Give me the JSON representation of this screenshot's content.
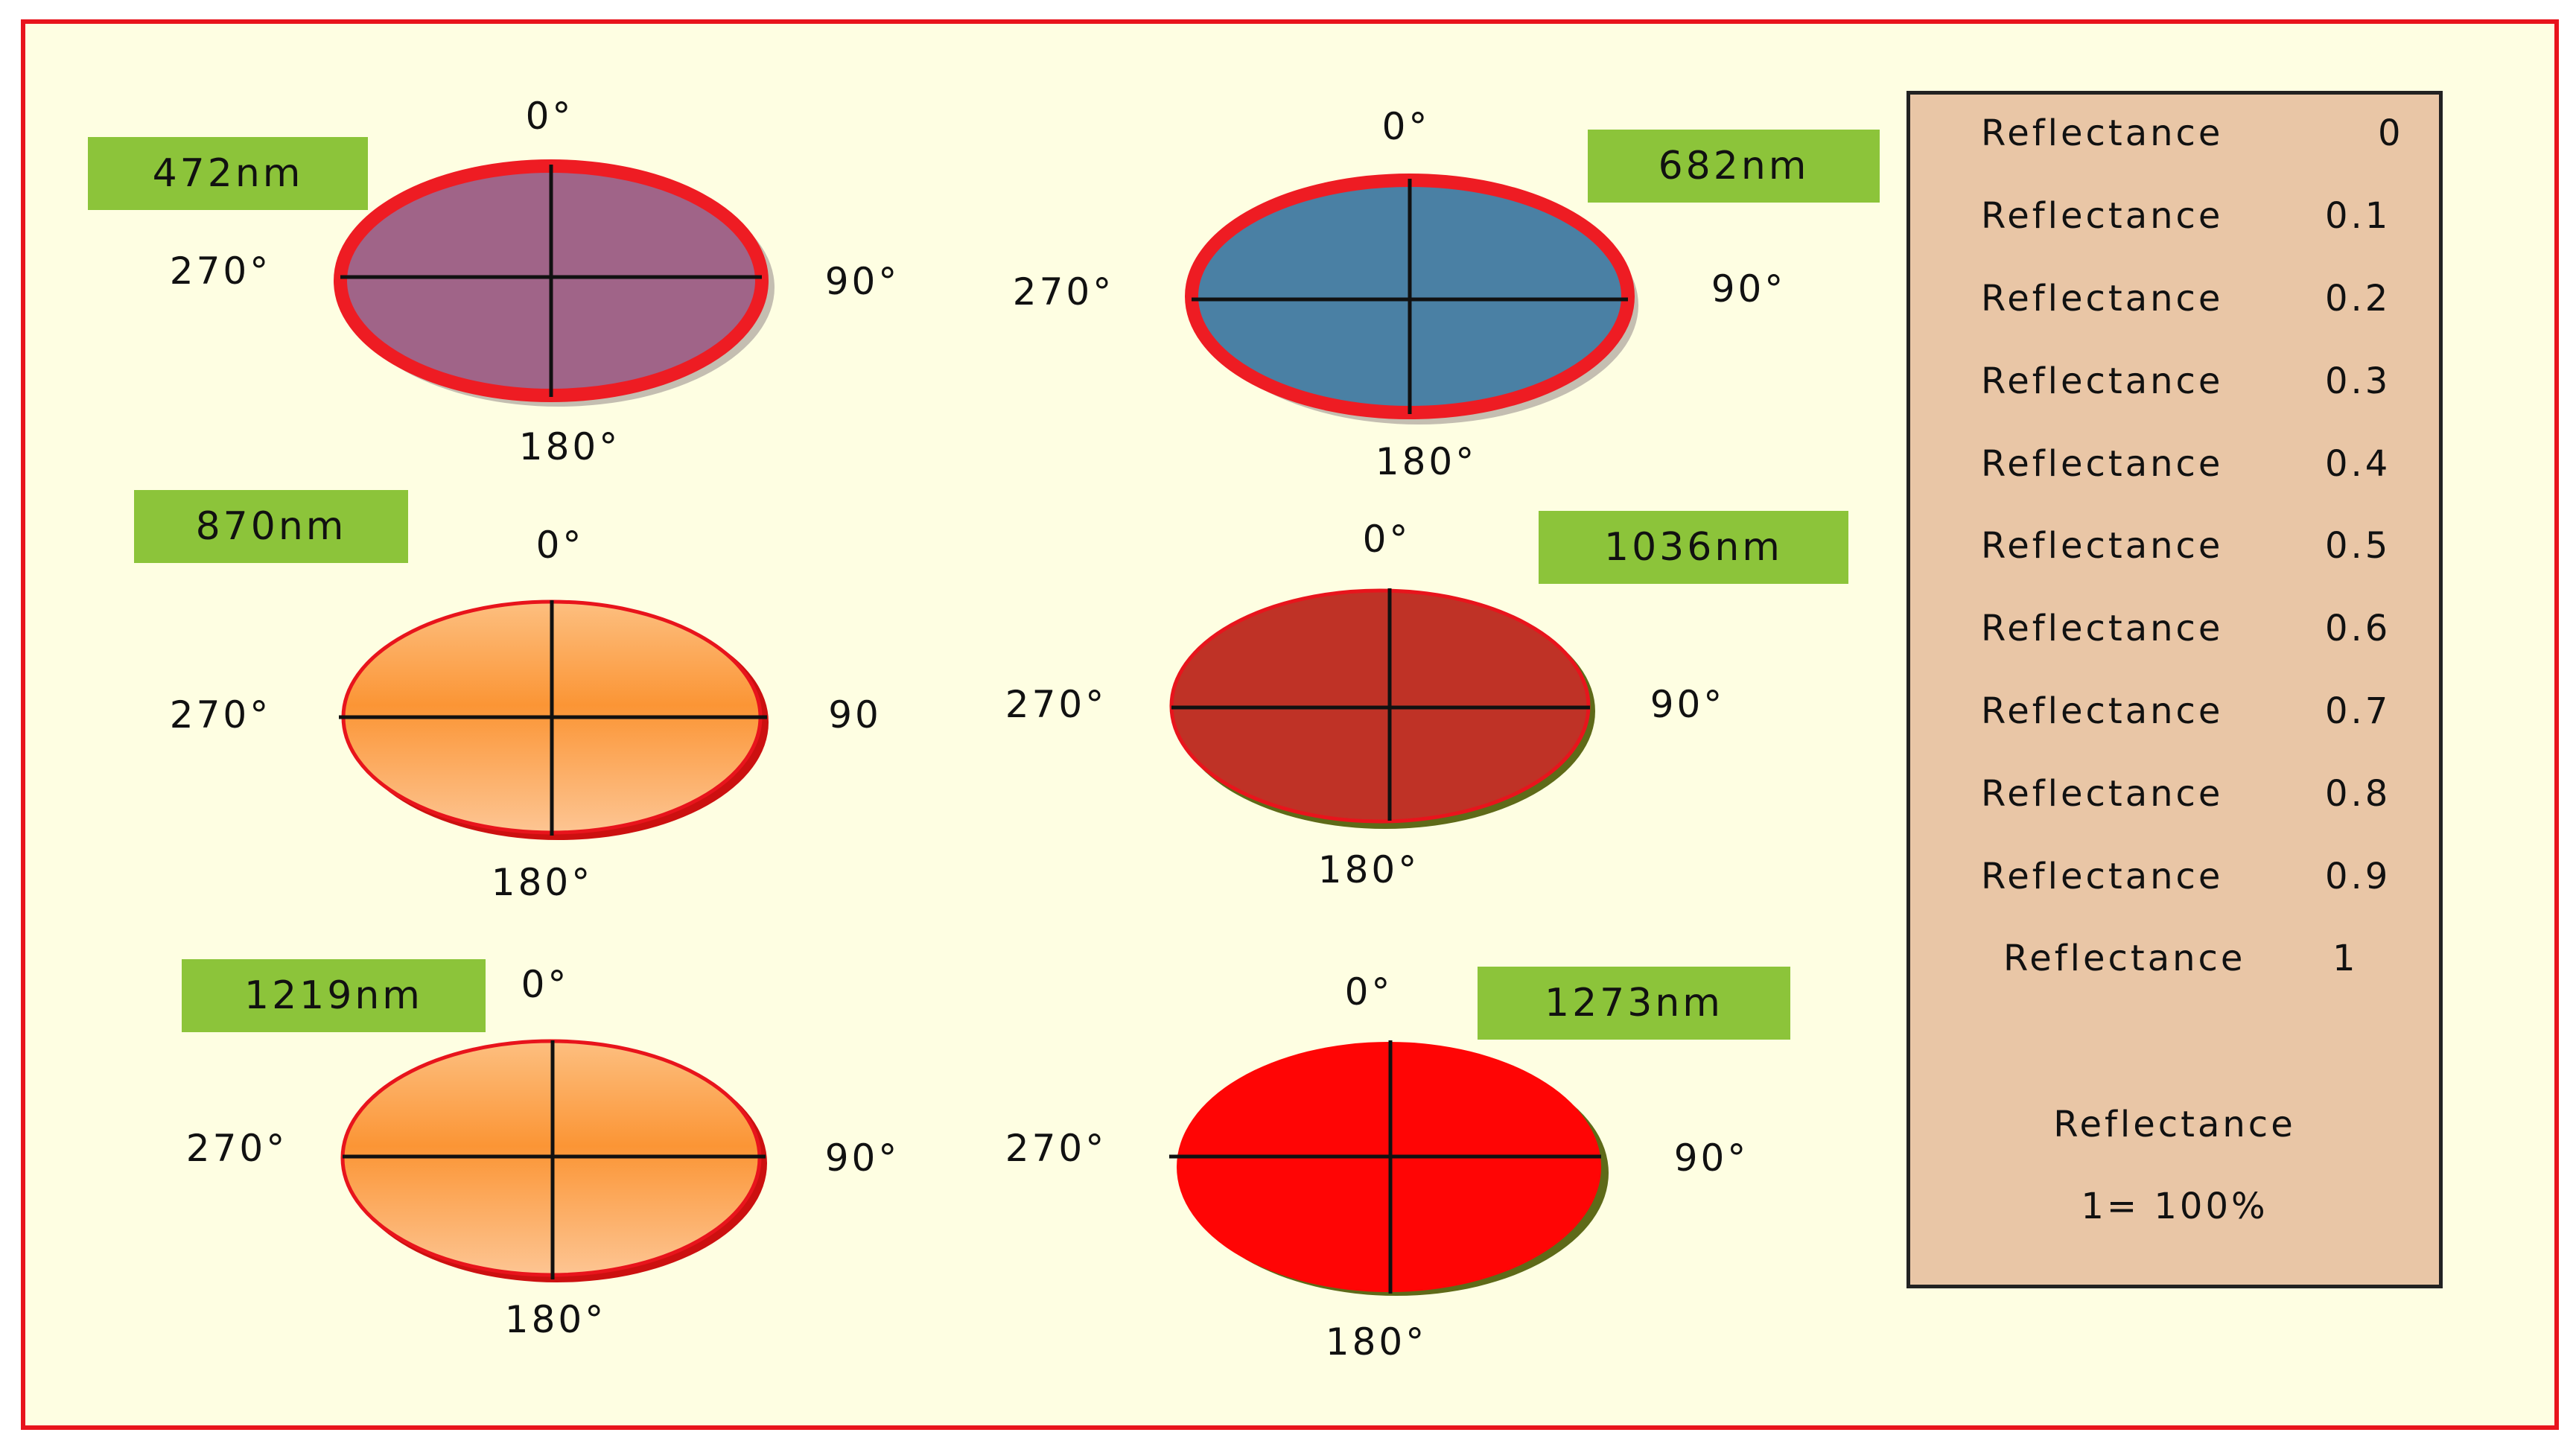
{
  "colors": {
    "frame_border": "#e8141c",
    "background": "#fefee2",
    "wavelength_label": "#8cc43a",
    "legend_fill": "#e9c6a6"
  },
  "disks": [
    {
      "wavelength": "472nm",
      "fill": "#a06488",
      "rim": "#ee1c23",
      "angles": {
        "top": "0°",
        "right": "90°",
        "bottom": "180°",
        "left": "270°"
      }
    },
    {
      "wavelength": "682nm",
      "fill": "#4a80a4",
      "rim": "#ee1c23",
      "angles": {
        "top": "0°",
        "right": "90°",
        "bottom": "180°",
        "left": "270°"
      }
    },
    {
      "wavelength": "870nm",
      "fill": "#fb9535",
      "rim": "#e8141c",
      "angles": {
        "top": "0°",
        "right": "90",
        "bottom": "180°",
        "left": "270°"
      }
    },
    {
      "wavelength": "1036nm",
      "fill": "#bf3226",
      "rim": "#e8141c",
      "angles": {
        "top": "0°",
        "right": "90°",
        "bottom": "180°",
        "left": "270°"
      }
    },
    {
      "wavelength": "1219nm",
      "fill": "#fb9535",
      "rim": "#e8141c",
      "angles": {
        "top": "0°",
        "right": "90°",
        "bottom": "180°",
        "left": "270°"
      }
    },
    {
      "wavelength": "1273nm",
      "fill": "#ff0505",
      "rim": "#ff0505",
      "angles": {
        "top": "0°",
        "right": "90°",
        "bottom": "180°",
        "left": "270°"
      }
    }
  ],
  "legend": {
    "rows": [
      {
        "label": "Reflectance",
        "value": "0"
      },
      {
        "label": "Reflectance",
        "value": "0.1"
      },
      {
        "label": "Reflectance",
        "value": "0.2"
      },
      {
        "label": "Reflectance",
        "value": "0.3"
      },
      {
        "label": "Reflectance",
        "value": "0.4"
      },
      {
        "label": "Reflectance",
        "value": "0.5"
      },
      {
        "label": "Reflectance",
        "value": "0.6"
      },
      {
        "label": "Reflectance",
        "value": "0.7"
      },
      {
        "label": "Reflectance",
        "value": "0.8"
      },
      {
        "label": "Reflectance",
        "value": "0.9"
      },
      {
        "label": "Reflectance",
        "value": "1"
      }
    ],
    "note_title": "Reflectance",
    "note_value": "1= 100%"
  }
}
